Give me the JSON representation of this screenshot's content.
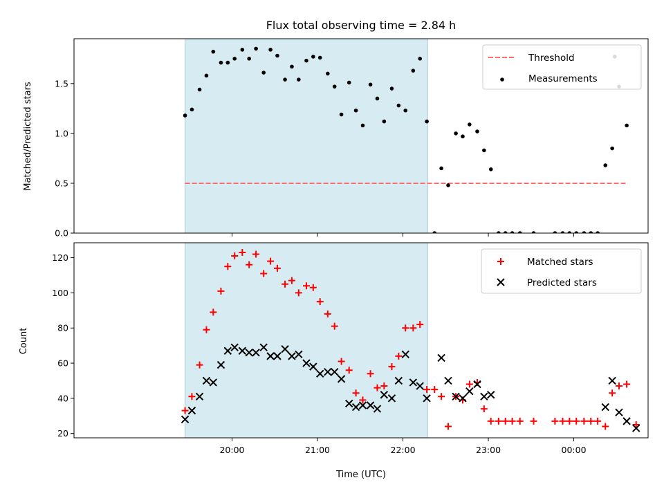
{
  "chart_data": [
    {
      "type": "scatter",
      "title": "Flux total observing time = 2.84 h",
      "ylabel": "Matched/Predicted stars",
      "xlabel": "",
      "x_unit": "hours since 19:00 UTC",
      "xlim": [
        -0.85,
        5.87
      ],
      "ylim": [
        0,
        1.95
      ],
      "yticks": [
        0.0,
        0.5,
        1.0,
        1.5
      ],
      "ytick_labels": [
        "0.0",
        "0.5",
        "1.0",
        "1.5"
      ],
      "xticks": [
        1,
        2,
        3,
        4,
        5
      ],
      "xtick_labels": [
        "",
        "",
        "",
        "",
        ""
      ],
      "shaded_region": [
        0.45,
        3.29
      ],
      "threshold": {
        "name": "Threshold",
        "y": 0.5,
        "x_range": [
          0.45,
          5.62
        ],
        "color": "#ff6b6b"
      },
      "series": [
        {
          "name": "Measurements",
          "color": "#000000",
          "points": [
            [
              0.45,
              1.18
            ],
            [
              0.53,
              1.24
            ],
            [
              0.62,
              1.44
            ],
            [
              0.7,
              1.58
            ],
            [
              0.78,
              1.82
            ],
            [
              0.87,
              1.71
            ],
            [
              0.95,
              1.71
            ],
            [
              1.03,
              1.75
            ],
            [
              1.12,
              1.84
            ],
            [
              1.2,
              1.75
            ],
            [
              1.28,
              1.85
            ],
            [
              1.37,
              1.61
            ],
            [
              1.45,
              1.84
            ],
            [
              1.53,
              1.78
            ],
            [
              1.62,
              1.54
            ],
            [
              1.7,
              1.67
            ],
            [
              1.78,
              1.54
            ],
            [
              1.87,
              1.73
            ],
            [
              1.95,
              1.77
            ],
            [
              2.03,
              1.76
            ],
            [
              2.12,
              1.6
            ],
            [
              2.2,
              1.47
            ],
            [
              2.28,
              1.19
            ],
            [
              2.37,
              1.51
            ],
            [
              2.45,
              1.23
            ],
            [
              2.53,
              1.08
            ],
            [
              2.62,
              1.49
            ],
            [
              2.7,
              1.35
            ],
            [
              2.78,
              1.12
            ],
            [
              2.87,
              1.45
            ],
            [
              2.95,
              1.28
            ],
            [
              3.03,
              1.23
            ],
            [
              3.12,
              1.63
            ],
            [
              3.2,
              1.75
            ],
            [
              3.28,
              1.12
            ],
            [
              3.37,
              0.0
            ],
            [
              3.45,
              0.65
            ],
            [
              3.53,
              0.48
            ],
            [
              3.62,
              1.0
            ],
            [
              3.7,
              0.97
            ],
            [
              3.78,
              1.09
            ],
            [
              3.87,
              1.02
            ],
            [
              3.95,
              0.83
            ],
            [
              4.03,
              0.64
            ],
            [
              4.12,
              0.0
            ],
            [
              4.2,
              0.0
            ],
            [
              4.28,
              0.0
            ],
            [
              4.37,
              0.0
            ],
            [
              4.53,
              0.0
            ],
            [
              4.78,
              0.0
            ],
            [
              4.87,
              0.0
            ],
            [
              4.95,
              0.0
            ],
            [
              5.03,
              0.0
            ],
            [
              5.12,
              0.0
            ],
            [
              5.2,
              0.0
            ],
            [
              5.28,
              0.0
            ],
            [
              5.37,
              0.68
            ],
            [
              5.45,
              0.85
            ],
            [
              5.53,
              1.47
            ],
            [
              5.62,
              1.08
            ],
            [
              5.48,
              1.77
            ]
          ]
        }
      ],
      "legend": {
        "position": "upper right",
        "entries": [
          "Threshold",
          "Measurements"
        ]
      }
    },
    {
      "type": "scatter",
      "title": "",
      "xlabel": "Time (UTC)",
      "ylabel": "Count",
      "x_unit": "hours since 19:00 UTC",
      "xlim": [
        -0.85,
        5.87
      ],
      "ylim": [
        17.5,
        128.5
      ],
      "yticks": [
        20,
        40,
        60,
        80,
        100,
        120
      ],
      "ytick_labels": [
        "20",
        "40",
        "60",
        "80",
        "100",
        "120"
      ],
      "xticks": [
        1,
        2,
        3,
        4,
        5
      ],
      "xtick_labels": [
        "20:00",
        "21:00",
        "22:00",
        "23:00",
        "00:00"
      ],
      "shaded_region": [
        0.45,
        3.29
      ],
      "series": [
        {
          "name": "Matched stars",
          "marker": "plus",
          "color": "#ff0000",
          "points": [
            [
              0.45,
              33
            ],
            [
              0.53,
              41
            ],
            [
              0.62,
              59
            ],
            [
              0.7,
              79
            ],
            [
              0.78,
              89
            ],
            [
              0.87,
              101
            ],
            [
              0.95,
              115
            ],
            [
              1.03,
              121
            ],
            [
              1.12,
              123
            ],
            [
              1.2,
              116
            ],
            [
              1.28,
              122
            ],
            [
              1.37,
              111
            ],
            [
              1.45,
              118
            ],
            [
              1.53,
              114
            ],
            [
              1.62,
              105
            ],
            [
              1.7,
              107
            ],
            [
              1.78,
              100
            ],
            [
              1.87,
              104
            ],
            [
              1.95,
              103
            ],
            [
              2.03,
              95
            ],
            [
              2.12,
              88
            ],
            [
              2.2,
              81
            ],
            [
              2.28,
              61
            ],
            [
              2.37,
              56
            ],
            [
              2.45,
              43
            ],
            [
              2.53,
              39
            ],
            [
              2.62,
              54
            ],
            [
              2.7,
              46
            ],
            [
              2.78,
              47
            ],
            [
              2.87,
              58
            ],
            [
              2.95,
              64
            ],
            [
              3.03,
              80
            ],
            [
              3.12,
              80
            ],
            [
              3.2,
              82
            ],
            [
              3.28,
              45
            ],
            [
              3.37,
              45
            ],
            [
              3.45,
              41
            ],
            [
              3.53,
              24
            ],
            [
              3.62,
              41
            ],
            [
              3.7,
              39
            ],
            [
              3.78,
              48
            ],
            [
              3.87,
              49
            ],
            [
              3.95,
              34
            ],
            [
              4.03,
              27
            ],
            [
              4.12,
              27
            ],
            [
              4.2,
              27
            ],
            [
              4.28,
              27
            ],
            [
              4.37,
              27
            ],
            [
              4.53,
              27
            ],
            [
              4.78,
              27
            ],
            [
              4.87,
              27
            ],
            [
              4.95,
              27
            ],
            [
              5.03,
              27
            ],
            [
              5.12,
              27
            ],
            [
              5.2,
              27
            ],
            [
              5.28,
              27
            ],
            [
              5.37,
              24
            ],
            [
              5.45,
              43
            ],
            [
              5.53,
              47
            ],
            [
              5.62,
              48
            ],
            [
              5.73,
              25
            ]
          ]
        },
        {
          "name": "Predicted stars",
          "marker": "x",
          "color": "#000000",
          "points": [
            [
              0.45,
              28
            ],
            [
              0.53,
              33
            ],
            [
              0.62,
              41
            ],
            [
              0.7,
              50
            ],
            [
              0.78,
              49
            ],
            [
              0.87,
              59
            ],
            [
              0.95,
              67
            ],
            [
              1.03,
              69
            ],
            [
              1.12,
              67
            ],
            [
              1.2,
              66
            ],
            [
              1.28,
              66
            ],
            [
              1.37,
              69
            ],
            [
              1.45,
              64
            ],
            [
              1.53,
              64
            ],
            [
              1.62,
              68
            ],
            [
              1.7,
              64
            ],
            [
              1.78,
              65
            ],
            [
              1.87,
              60
            ],
            [
              1.95,
              58
            ],
            [
              2.03,
              54
            ],
            [
              2.12,
              55
            ],
            [
              2.2,
              55
            ],
            [
              2.28,
              51
            ],
            [
              2.37,
              37
            ],
            [
              2.45,
              35
            ],
            [
              2.53,
              36
            ],
            [
              2.62,
              36
            ],
            [
              2.7,
              34
            ],
            [
              2.78,
              42
            ],
            [
              2.87,
              40
            ],
            [
              2.95,
              50
            ],
            [
              3.03,
              65
            ],
            [
              3.12,
              49
            ],
            [
              3.2,
              47
            ],
            [
              3.28,
              40
            ],
            [
              3.45,
              63
            ],
            [
              3.53,
              50
            ],
            [
              3.62,
              41
            ],
            [
              3.7,
              40
            ],
            [
              3.78,
              44
            ],
            [
              3.87,
              48
            ],
            [
              3.95,
              41
            ],
            [
              4.03,
              42
            ],
            [
              5.37,
              35
            ],
            [
              5.45,
              50
            ],
            [
              5.53,
              32
            ],
            [
              5.62,
              27
            ],
            [
              5.73,
              23
            ]
          ]
        }
      ],
      "legend": {
        "position": "upper right",
        "entries": [
          "Matched stars",
          "Predicted stars"
        ]
      }
    }
  ]
}
